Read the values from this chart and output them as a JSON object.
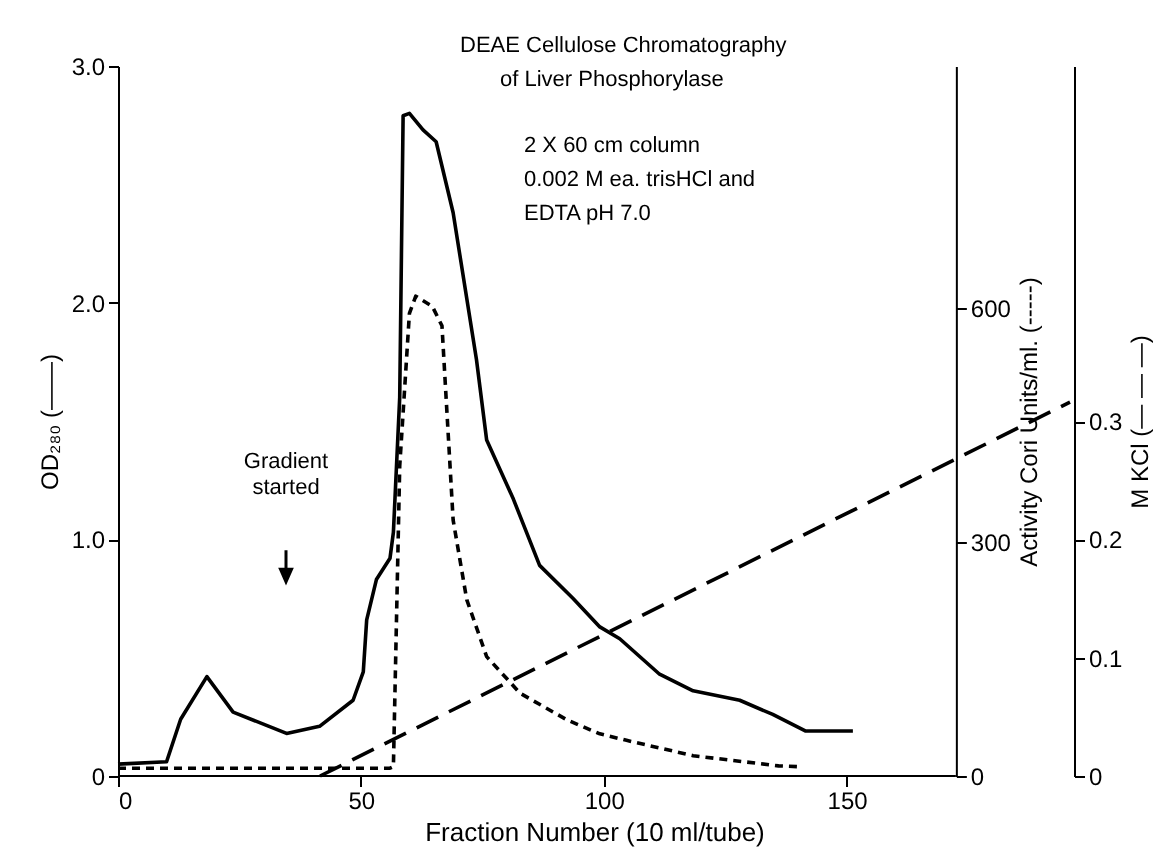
{
  "chart_data": {
    "type": "line",
    "annotations": [
      "DEAE Cellulose Chromatography",
      "of Liver Phosphorylase",
      "2 X 60 cm column",
      "0.002 M ea. trisHCl and",
      "EDTA  pH  7.0",
      "Gradient started"
    ],
    "xlabel": "Fraction Number  (10 ml/tube)",
    "ylabel": "OD₂₈₀ (——)",
    "y2label": "Activity Cori Units/ml. (-----)",
    "y3label": "M KCl (— — —)",
    "xlim": [
      0,
      196
    ],
    "xticks": [
      0,
      50,
      100,
      150
    ],
    "ylim": [
      0,
      3.0
    ],
    "yticks": [
      0,
      {
        "value": 1,
        "label": "1.0"
      },
      {
        "value": 2,
        "label": "2.0"
      },
      {
        "value": 3,
        "label": "3.0"
      }
    ],
    "y2lim": [
      0,
      910
    ],
    "y2ticks": [
      0,
      300,
      600
    ],
    "y3lim": [
      0,
      0.6
    ],
    "y3ticks": [
      0,
      0.1,
      0.2,
      0.3
    ],
    "grid": false,
    "series": [
      {
        "color": "#000000",
        "line_style": "solid",
        "x": [
          0,
          10,
          12.9,
          18.3,
          23.7,
          34.7,
          41.5,
          48.4,
          50.5,
          51.2,
          53.2,
          56,
          56.7,
          58,
          58.7,
          60,
          62.8,
          65.5,
          69,
          73.8,
          75.9,
          81.4,
          86.8,
          93.7,
          99.2,
          103.3,
          111.5,
          118.4,
          128,
          134.8,
          141.6,
          151.3
        ],
        "values": [
          0.05,
          0.06,
          0.24,
          0.42,
          0.27,
          0.18,
          0.21,
          0.32,
          0.44,
          0.66,
          0.83,
          0.92,
          1.03,
          1.6,
          2.79,
          2.8,
          2.73,
          2.68,
          2.38,
          1.76,
          1.42,
          1.17,
          0.89,
          0.75,
          0.63,
          0.58,
          0.43,
          0.36,
          0.32,
          0.26,
          0.19,
          0.19
        ]
      },
      {
        "color": "#000000",
        "line_style": "dashed",
        "axis": "y2",
        "x": [
          0,
          56,
          56.7,
          58,
          60,
          61.3,
          64.7,
          66.7,
          69,
          71.8,
          75.9,
          82.8,
          92.4,
          99.2,
          104.5,
          118.4,
          136,
          140
        ],
        "values": [
          10,
          10,
          12,
          397,
          593,
          615,
          602,
          577,
          328,
          226,
          153,
          106,
          72,
          54,
          46,
          26,
          13,
          12
        ]
      },
      {
        "color": "#000000",
        "line_style": "longdash",
        "axis": "y3",
        "x": [
          41.6,
          196
        ],
        "values": [
          0,
          0.316
        ]
      }
    ]
  }
}
